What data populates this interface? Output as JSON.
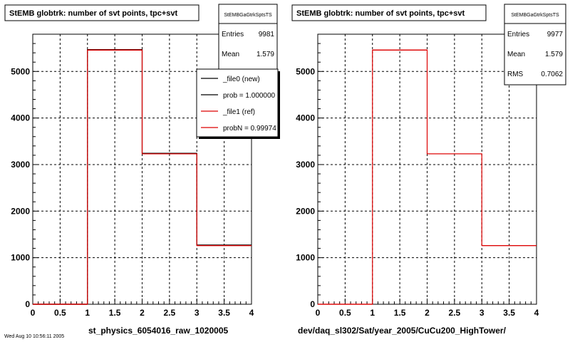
{
  "corner_text": "Wed Aug 10 10:56:11 2005",
  "colors": {
    "new": "#000000",
    "ref": "#dd0000",
    "grid": "#000000",
    "frame": "#000000",
    "shadow": "#000000"
  },
  "chart_data": [
    {
      "type": "bar",
      "title": "StEMB globtrk: number of svt points, tpc+svt",
      "xlabel": "st_physics_6054016_raw_1020005",
      "ylabel": "",
      "xlim": [
        0,
        4
      ],
      "ylim": [
        0,
        5800
      ],
      "x_ticks": [
        "0",
        "0.5",
        "1",
        "1.5",
        "2",
        "2.5",
        "3",
        "3.5",
        "4"
      ],
      "y_ticks": [
        "0",
        "1000",
        "2000",
        "3000",
        "4000",
        "5000"
      ],
      "grid": true,
      "bin_edges": [
        0,
        1,
        2,
        3,
        4
      ],
      "series": [
        {
          "name": "_file0 (new)",
          "color": "#000000",
          "values": [
            0,
            5470,
            3240,
            1270
          ]
        },
        {
          "name": "_file1 (ref)",
          "color": "#dd0000",
          "values": [
            0,
            5460,
            3230,
            1260
          ]
        }
      ],
      "stats": {
        "title": "StEMBGaGtrkSptsTS",
        "rows": [
          {
            "label": "Entries",
            "value": "9981"
          },
          {
            "label": "Mean",
            "value": "1.579"
          }
        ]
      },
      "legend": {
        "placement": "top-right",
        "entries": [
          {
            "label": "_file0 (new)",
            "color": "#000000"
          },
          {
            "label": "prob = 1.000000",
            "color": "#000000"
          },
          {
            "label": "_file1 (ref)",
            "color": "#dd0000"
          },
          {
            "label": "probN = 0.99974",
            "color": "#dd0000"
          }
        ]
      }
    },
    {
      "type": "bar",
      "title": "StEMB globtrk: number of svt points, tpc+svt",
      "xlabel": "dev/daq_sl302/Sat/year_2005/CuCu200_HighTower/",
      "ylabel": "",
      "xlim": [
        0,
        4
      ],
      "ylim": [
        0,
        5800
      ],
      "x_ticks": [
        "0",
        "0.5",
        "1",
        "1.5",
        "2",
        "2.5",
        "3",
        "3.5",
        "4"
      ],
      "y_ticks": [
        "0",
        "1000",
        "2000",
        "3000",
        "4000",
        "5000"
      ],
      "grid": true,
      "bin_edges": [
        0,
        1,
        2,
        3,
        4
      ],
      "series": [
        {
          "name": "",
          "color": "#dd0000",
          "values": [
            0,
            5460,
            3230,
            1260
          ]
        }
      ],
      "stats": {
        "title": "StEMBGaGtrkSptsTS",
        "rows": [
          {
            "label": "Entries",
            "value": "9977"
          },
          {
            "label": "Mean",
            "value": "1.579"
          },
          {
            "label": "RMS",
            "value": "0.7062"
          }
        ]
      },
      "legend": null
    }
  ]
}
